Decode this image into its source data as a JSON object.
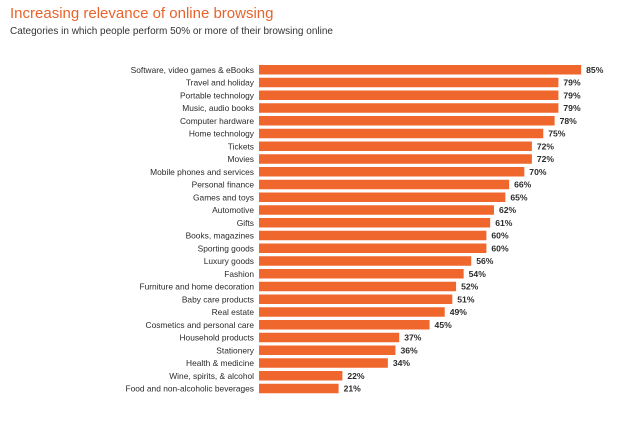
{
  "header": {
    "title": "Increasing relevance of online browsing",
    "subtitle": "Categories in which people perform 50% or more of their browsing online"
  },
  "colors": {
    "bar": "#f0672e",
    "title": "#e8632b",
    "text": "#2b2b2b"
  },
  "chart_data": {
    "type": "bar",
    "orientation": "horizontal",
    "title": "Increasing relevance of online browsing",
    "subtitle": "Categories in which people perform 50% or more of their browsing online",
    "categories": [
      "Software, video games & eBooks",
      "Travel and holiday",
      "Portable technology",
      "Music, audio books",
      "Computer hardware",
      "Home technology",
      "Tickets",
      "Movies",
      "Mobile phones and services",
      "Personal finance",
      "Games and toys",
      "Automotive",
      "Gifts",
      "Books, magazines",
      "Sporting goods",
      "Luxury goods",
      "Fashion",
      "Furniture and home decoration",
      "Baby care products",
      "Real estate",
      "Cosmetics and personal care",
      "Household products",
      "Stationery",
      "Health & medicine",
      "Wine, spirits, & alcohol",
      "Food and non-alcoholic beverages"
    ],
    "values": [
      85,
      79,
      79,
      79,
      78,
      75,
      72,
      72,
      70,
      66,
      65,
      62,
      61,
      60,
      60,
      56,
      54,
      52,
      51,
      49,
      45,
      37,
      36,
      34,
      22,
      21
    ],
    "value_labels": [
      "85%",
      "79%",
      "79%",
      "79%",
      "78%",
      "75%",
      "72%",
      "72%",
      "70%",
      "66%",
      "65%",
      "62%",
      "61%",
      "60%",
      "60%",
      "56%",
      "54%",
      "52%",
      "51%",
      "49%",
      "45%",
      "37%",
      "36%",
      "34%",
      "22%",
      "21%"
    ],
    "xlim": [
      0,
      85
    ],
    "grid": false,
    "legend": "none"
  }
}
